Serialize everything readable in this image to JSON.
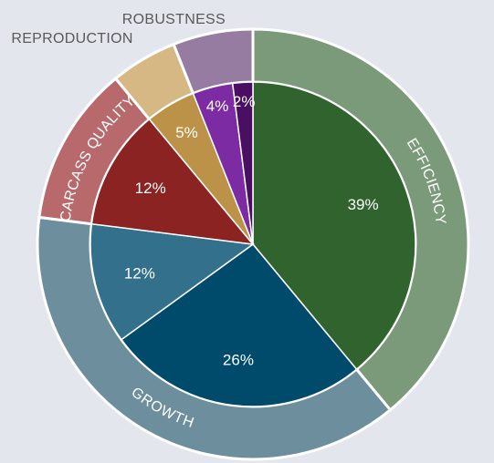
{
  "chart_data": {
    "type": "pie",
    "title": "",
    "inner_ring": {
      "slices": [
        {
          "value": 39,
          "label": "39%",
          "color": "#31632f",
          "group": "EFFICIENCY"
        },
        {
          "value": 26,
          "label": "26%",
          "color": "#004a6c",
          "group": "GROWTH"
        },
        {
          "value": 12,
          "label": "12%",
          "color": "#33708c",
          "group": "GROWTH"
        },
        {
          "value": 12,
          "label": "12%",
          "color": "#8a2321",
          "group": "CARCASS QUALITY"
        },
        {
          "value": 5,
          "label": "5%",
          "color": "#bc9248",
          "group": "REPRODUCTION"
        },
        {
          "value": 4,
          "label": "4%",
          "color": "#7d2ba3",
          "group": "ROBUSTNESS"
        },
        {
          "value": 2,
          "label": "2%",
          "color": "#4a0f62",
          "group": "ROBUSTNESS"
        }
      ]
    },
    "outer_ring": {
      "groups": [
        {
          "name": "EFFICIENCY",
          "value": 39,
          "color": "#7b9a7a",
          "label_position": "on-ring"
        },
        {
          "name": "GROWTH",
          "value": 38,
          "color": "#6d8e9c",
          "label_position": "on-ring"
        },
        {
          "name": "CARCASS QUALITY",
          "value": 12,
          "color": "#b7696c",
          "label_position": "on-ring"
        },
        {
          "name": "REPRODUCTION",
          "value": 5,
          "color": "#d6b885",
          "label_position": "outside"
        },
        {
          "name": "ROBUSTNESS",
          "value": 6,
          "color": "#957ca0",
          "label_position": "outside"
        }
      ]
    }
  }
}
